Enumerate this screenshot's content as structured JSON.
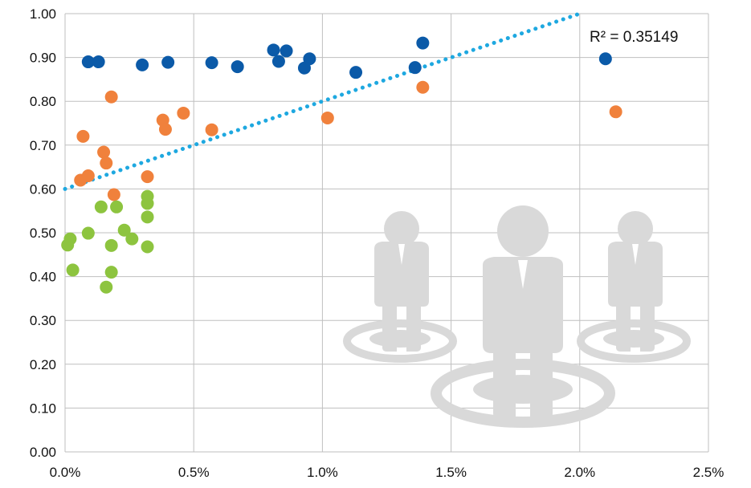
{
  "chart_data": {
    "type": "scatter",
    "title": "",
    "xlabel": "",
    "ylabel": "",
    "xlim": [
      0,
      0.025
    ],
    "ylim": [
      0,
      1.0
    ],
    "x_ticks": [
      0,
      0.005,
      0.01,
      0.015,
      0.02,
      0.025
    ],
    "x_tick_labels": [
      "0.0%",
      "0.5%",
      "1.0%",
      "1.5%",
      "2.0%",
      "2.5%"
    ],
    "y_ticks": [
      0,
      0.1,
      0.2,
      0.3,
      0.4,
      0.5,
      0.6,
      0.7,
      0.8,
      0.9,
      1.0
    ],
    "y_tick_labels": [
      "0.00",
      "0.10",
      "0.20",
      "0.30",
      "0.40",
      "0.50",
      "0.60",
      "0.70",
      "0.80",
      "0.90",
      "1.00"
    ],
    "grid": true,
    "legend": "none",
    "series": [
      {
        "color": "#0b5aa8",
        "points": [
          [
            0.0009,
            0.89
          ],
          [
            0.0013,
            0.89
          ],
          [
            0.003,
            0.883
          ],
          [
            0.004,
            0.889
          ],
          [
            0.0057,
            0.888
          ],
          [
            0.0067,
            0.879
          ],
          [
            0.0081,
            0.917
          ],
          [
            0.0083,
            0.891
          ],
          [
            0.0086,
            0.915
          ],
          [
            0.0093,
            0.876
          ],
          [
            0.0095,
            0.897
          ],
          [
            0.0113,
            0.866
          ],
          [
            0.0136,
            0.877
          ],
          [
            0.0139,
            0.933
          ],
          [
            0.021,
            0.897
          ]
        ]
      },
      {
        "color": "#f0813c",
        "points": [
          [
            0.0006,
            0.62
          ],
          [
            0.0007,
            0.72
          ],
          [
            0.0009,
            0.63
          ],
          [
            0.0015,
            0.684
          ],
          [
            0.0016,
            0.659
          ],
          [
            0.0018,
            0.81
          ],
          [
            0.0019,
            0.587
          ],
          [
            0.0032,
            0.628
          ],
          [
            0.0038,
            0.757
          ],
          [
            0.0039,
            0.736
          ],
          [
            0.0046,
            0.773
          ],
          [
            0.0057,
            0.735
          ],
          [
            0.0102,
            0.762
          ],
          [
            0.0139,
            0.832
          ],
          [
            0.0214,
            0.776
          ]
        ]
      },
      {
        "color": "#8dc43f",
        "points": [
          [
            0.0001,
            0.472
          ],
          [
            0.0002,
            0.486
          ],
          [
            0.0003,
            0.415
          ],
          [
            0.0009,
            0.499
          ],
          [
            0.0014,
            0.559
          ],
          [
            0.0016,
            0.376
          ],
          [
            0.0018,
            0.41
          ],
          [
            0.0018,
            0.471
          ],
          [
            0.002,
            0.559
          ],
          [
            0.0023,
            0.506
          ],
          [
            0.0026,
            0.486
          ],
          [
            0.0032,
            0.583
          ],
          [
            0.0032,
            0.567
          ],
          [
            0.0032,
            0.536
          ],
          [
            0.0032,
            0.468
          ]
        ]
      }
    ],
    "trendline": {
      "type": "linear",
      "color": "#1ea8e0",
      "style": "dotted",
      "x_range": [
        0,
        0.02
      ],
      "slope": 20.0,
      "intercept": 0.6,
      "label": "R² = 0.35149"
    },
    "watermark": "people-icon"
  }
}
